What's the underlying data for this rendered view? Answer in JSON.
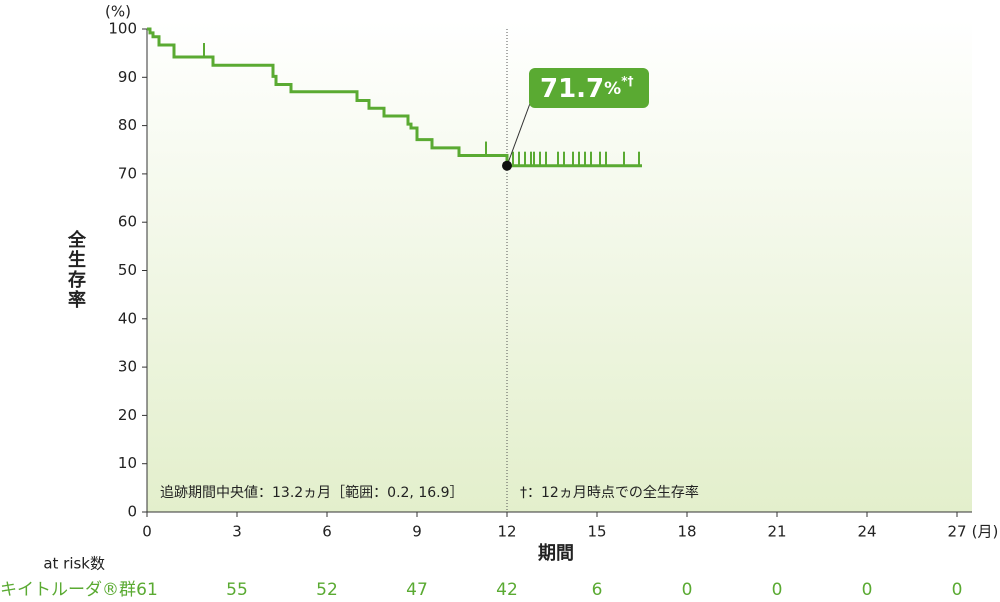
{
  "chart_data": {
    "type": "step",
    "y_unit": "(%)",
    "x_unit": "(月)",
    "y_label": "全生存率",
    "x_label": "期間",
    "xlim": [
      0,
      27.5
    ],
    "ylim": [
      0,
      100
    ],
    "xticks": [
      0,
      3,
      6,
      9,
      12,
      15,
      18,
      21,
      24,
      27
    ],
    "yticks": [
      0,
      10,
      20,
      30,
      40,
      50,
      60,
      70,
      80,
      90,
      100
    ],
    "series": [
      {
        "name": "キイトルーダ®群",
        "color": "#5aaa32",
        "x": [
          0,
          0.1,
          0.2,
          0.4,
          0.9,
          2.2,
          4.2,
          4.3,
          4.8,
          7.0,
          7.4,
          7.9,
          8.7,
          8.8,
          9.0,
          9.5,
          10.4,
          12.0,
          16.5
        ],
        "values": [
          100,
          99.2,
          98.4,
          96.7,
          94.2,
          92.5,
          90.2,
          88.5,
          87.0,
          85.2,
          83.6,
          82.0,
          80.3,
          79.5,
          77.1,
          75.4,
          73.8,
          71.7,
          71.7
        ],
        "censor_x": [
          1.9,
          11.3,
          12.2,
          12.4,
          12.6,
          12.8,
          12.9,
          13.1,
          13.3,
          13.7,
          13.9,
          14.2,
          14.4,
          14.6,
          14.8,
          15.1,
          15.3,
          15.9,
          16.4
        ],
        "censor_values": [
          94.2,
          73.8,
          71.7,
          71.7,
          71.7,
          71.7,
          71.7,
          71.7,
          71.7,
          71.7,
          71.7,
          71.7,
          71.7,
          71.7,
          71.7,
          71.7,
          71.7,
          71.7,
          71.7
        ],
        "at_risk": [
          61,
          55,
          52,
          47,
          42,
          6,
          0,
          0,
          0,
          0
        ]
      }
    ],
    "at_risk_label": "at risk数",
    "callout": {
      "x": 12,
      "value": 71.7,
      "label": "71.7",
      "unit": "%",
      "marks": "*†"
    },
    "annotations": [
      "追跡期間中央値：13.2ヵ月［範囲：0.2, 16.9］",
      "†：12ヵ月時点での全生存率"
    ]
  }
}
